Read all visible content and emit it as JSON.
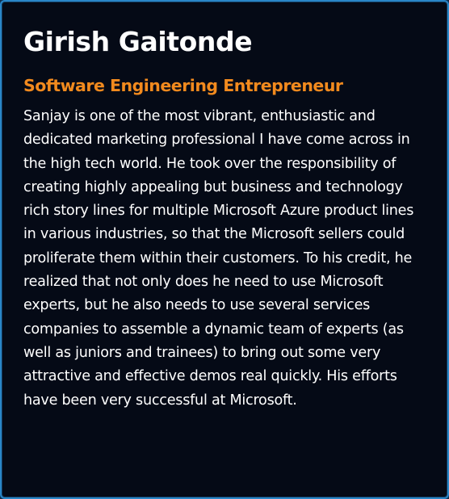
{
  "testimonial": {
    "name": "Girish Gaitonde",
    "role": "Software Engineering Entrepreneur",
    "quote": "Sanjay is one of the most vibrant, enthusiastic and dedicated marketing professional I have come across in the high tech world. He took over the responsibility of creating highly appealing but business and technology rich story lines for multiple Microsoft Azure product lines in various industries, so that the Microsoft sellers could proliferate them within their customers. To his credit, he realized that not only does he need to use Microsoft experts, but he also needs to use several services companies to assemble a dynamic team of experts (as well as juniors and trainees) to bring out some very attractive and effective demos real quickly. His efforts have been very successful at Microsoft."
  },
  "colors": {
    "background": "#050a16",
    "border": "#2a86c8",
    "name": "#ffffff",
    "role": "#f28a1e",
    "quote": "#ffffff"
  }
}
